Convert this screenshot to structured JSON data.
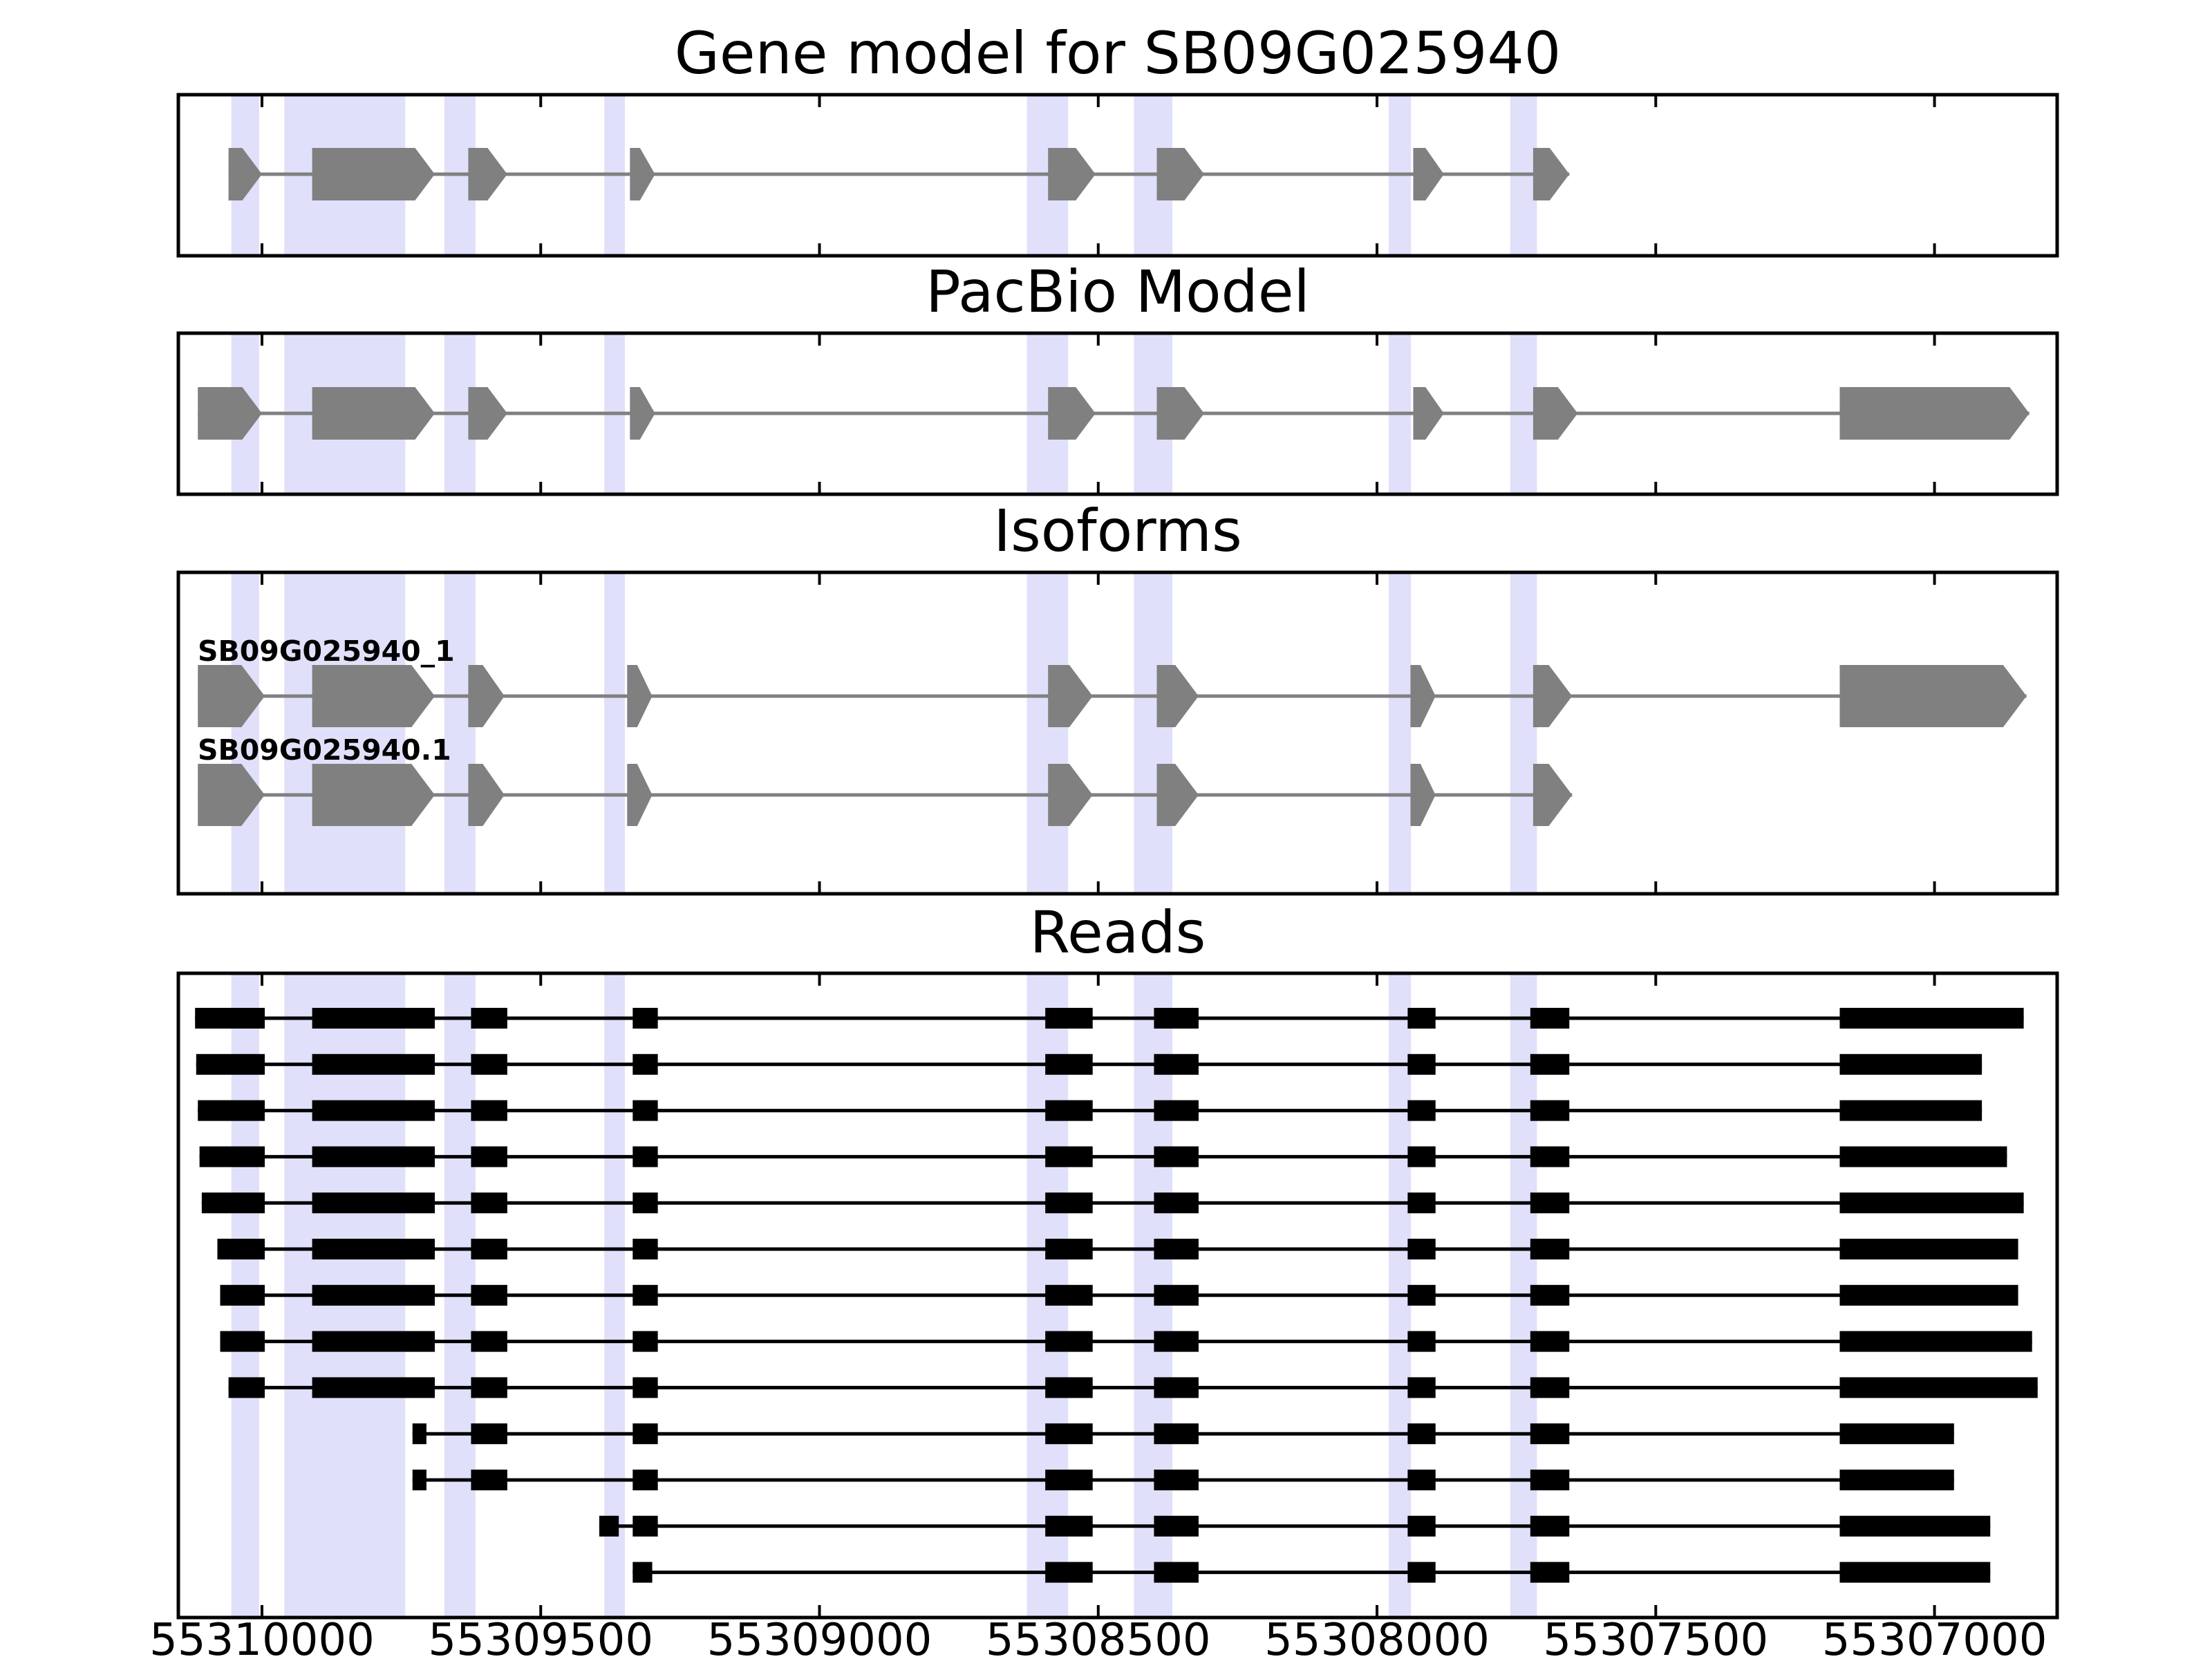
{
  "chart_data": {
    "type": "gene-track",
    "xlim": [
      55310150,
      55306780
    ],
    "x_ticks": [
      {
        "value": 55310000,
        "label": "55310000"
      },
      {
        "value": 55309500,
        "label": "55309500"
      },
      {
        "value": 55309000,
        "label": "55309000"
      },
      {
        "value": 55308500,
        "label": "55308500"
      },
      {
        "value": 55308000,
        "label": "55308000"
      },
      {
        "value": 55307500,
        "label": "55307500"
      },
      {
        "value": 55307000,
        "label": "55307000"
      }
    ],
    "shaded_regions": [
      [
        55310055,
        55310005
      ],
      [
        55309960,
        55309743
      ],
      [
        55309673,
        55309617
      ],
      [
        55309386,
        55309349
      ],
      [
        55308628,
        55308554
      ],
      [
        55308436,
        55308367
      ],
      [
        55307979,
        55307939
      ],
      [
        55307761,
        55307713
      ]
    ],
    "shade_color": "#e0e0fb",
    "feature_color": "#808080",
    "read_color": "#000000",
    "panels": [
      {
        "title": "Gene model for SB09G025940",
        "tracks": [
          {
            "exons": [
              [
                55310060,
                55310000
              ],
              [
                55309910,
                55309690
              ],
              [
                55309630,
                55309560
              ],
              [
                55309340,
                55309295
              ],
              [
                55308590,
                55308505
              ],
              [
                55308395,
                55308310
              ],
              [
                55307935,
                55307880
              ],
              [
                55307720,
                55307655
              ]
            ]
          }
        ]
      },
      {
        "title": "PacBio Model",
        "tracks": [
          {
            "exons": [
              [
                55310115,
                55310000
              ],
              [
                55309910,
                55309690
              ],
              [
                55309630,
                55309560
              ],
              [
                55309340,
                55309295
              ],
              [
                55308590,
                55308505
              ],
              [
                55308395,
                55308310
              ],
              [
                55307935,
                55307880
              ],
              [
                55307720,
                55307640
              ],
              [
                55307170,
                55306830
              ]
            ]
          }
        ]
      },
      {
        "title": "Isoforms",
        "tracks": [
          {
            "label": "SB09G025940_1",
            "exons": [
              [
                55310115,
                55309995
              ],
              [
                55309910,
                55309690
              ],
              [
                55309630,
                55309565
              ],
              [
                55309345,
                55309300
              ],
              [
                55308590,
                55308510
              ],
              [
                55308395,
                55308320
              ],
              [
                55307940,
                55307895
              ],
              [
                55307720,
                55307650
              ],
              [
                55307170,
                55306835
              ]
            ]
          },
          {
            "label": "SB09G025940.1",
            "exons": [
              [
                55310115,
                55309995
              ],
              [
                55309910,
                55309690
              ],
              [
                55309630,
                55309565
              ],
              [
                55309345,
                55309300
              ],
              [
                55308590,
                55308510
              ],
              [
                55308395,
                55308320
              ],
              [
                55307940,
                55307895
              ],
              [
                55307720,
                55307650
              ]
            ]
          }
        ]
      },
      {
        "title": "Reads",
        "tracks": [
          {
            "exons": [
              [
                55310120,
                55309995
              ],
              [
                55309910,
                55309690
              ],
              [
                55309625,
                55309560
              ],
              [
                55309335,
                55309290
              ],
              [
                55308595,
                55308510
              ],
              [
                55308400,
                55308320
              ],
              [
                55307945,
                55307895
              ],
              [
                55307725,
                55307655
              ],
              [
                55307170,
                55306840
              ]
            ]
          },
          {
            "exons": [
              [
                55310118,
                55309995
              ],
              [
                55309910,
                55309690
              ],
              [
                55309625,
                55309560
              ],
              [
                55309335,
                55309290
              ],
              [
                55308595,
                55308510
              ],
              [
                55308400,
                55308320
              ],
              [
                55307945,
                55307895
              ],
              [
                55307725,
                55307655
              ],
              [
                55307170,
                55306915
              ]
            ]
          },
          {
            "exons": [
              [
                55310115,
                55309995
              ],
              [
                55309910,
                55309690
              ],
              [
                55309625,
                55309560
              ],
              [
                55309335,
                55309290
              ],
              [
                55308595,
                55308510
              ],
              [
                55308400,
                55308320
              ],
              [
                55307945,
                55307895
              ],
              [
                55307725,
                55307655
              ],
              [
                55307170,
                55306915
              ]
            ]
          },
          {
            "exons": [
              [
                55310112,
                55309995
              ],
              [
                55309910,
                55309690
              ],
              [
                55309625,
                55309560
              ],
              [
                55309335,
                55309290
              ],
              [
                55308595,
                55308510
              ],
              [
                55308400,
                55308320
              ],
              [
                55307945,
                55307895
              ],
              [
                55307725,
                55307655
              ],
              [
                55307170,
                55306870
              ]
            ]
          },
          {
            "exons": [
              [
                55310108,
                55309995
              ],
              [
                55309910,
                55309690
              ],
              [
                55309625,
                55309560
              ],
              [
                55309335,
                55309290
              ],
              [
                55308595,
                55308510
              ],
              [
                55308400,
                55308320
              ],
              [
                55307945,
                55307895
              ],
              [
                55307725,
                55307655
              ],
              [
                55307170,
                55306840
              ]
            ]
          },
          {
            "exons": [
              [
                55310080,
                55309995
              ],
              [
                55309910,
                55309690
              ],
              [
                55309625,
                55309560
              ],
              [
                55309335,
                55309290
              ],
              [
                55308595,
                55308510
              ],
              [
                55308400,
                55308320
              ],
              [
                55307945,
                55307895
              ],
              [
                55307725,
                55307655
              ],
              [
                55307170,
                55306850
              ]
            ]
          },
          {
            "exons": [
              [
                55310075,
                55309995
              ],
              [
                55309910,
                55309690
              ],
              [
                55309625,
                55309560
              ],
              [
                55309335,
                55309290
              ],
              [
                55308595,
                55308510
              ],
              [
                55308400,
                55308320
              ],
              [
                55307945,
                55307895
              ],
              [
                55307725,
                55307655
              ],
              [
                55307170,
                55306850
              ]
            ]
          },
          {
            "exons": [
              [
                55310075,
                55309995
              ],
              [
                55309910,
                55309690
              ],
              [
                55309625,
                55309560
              ],
              [
                55309335,
                55309290
              ],
              [
                55308595,
                55308510
              ],
              [
                55308400,
                55308320
              ],
              [
                55307945,
                55307895
              ],
              [
                55307725,
                55307655
              ],
              [
                55307170,
                55306825
              ]
            ]
          },
          {
            "exons": [
              [
                55310060,
                55309995
              ],
              [
                55309910,
                55309690
              ],
              [
                55309625,
                55309560
              ],
              [
                55309335,
                55309290
              ],
              [
                55308595,
                55308510
              ],
              [
                55308400,
                55308320
              ],
              [
                55307945,
                55307895
              ],
              [
                55307725,
                55307655
              ],
              [
                55307170,
                55306815
              ]
            ]
          },
          {
            "exons": [
              [
                55309730,
                55309705
              ],
              [
                55309625,
                55309560
              ],
              [
                55309335,
                55309290
              ],
              [
                55308595,
                55308510
              ],
              [
                55308400,
                55308320
              ],
              [
                55307945,
                55307895
              ],
              [
                55307725,
                55307655
              ],
              [
                55307170,
                55306965
              ]
            ]
          },
          {
            "exons": [
              [
                55309730,
                55309705
              ],
              [
                55309625,
                55309560
              ],
              [
                55309335,
                55309290
              ],
              [
                55308595,
                55308510
              ],
              [
                55308400,
                55308320
              ],
              [
                55307945,
                55307895
              ],
              [
                55307725,
                55307655
              ],
              [
                55307170,
                55306965
              ]
            ]
          },
          {
            "exons": [
              [
                55309395,
                55309360
              ],
              [
                55309335,
                55309290
              ],
              [
                55308595,
                55308510
              ],
              [
                55308400,
                55308320
              ],
              [
                55307945,
                55307895
              ],
              [
                55307725,
                55307655
              ],
              [
                55307170,
                55306900
              ]
            ]
          },
          {
            "exons": [
              [
                55309335,
                55309300
              ],
              [
                55308595,
                55308510
              ],
              [
                55308400,
                55308320
              ],
              [
                55307945,
                55307895
              ],
              [
                55307725,
                55307655
              ],
              [
                55307170,
                55306900
              ]
            ]
          }
        ]
      }
    ]
  }
}
